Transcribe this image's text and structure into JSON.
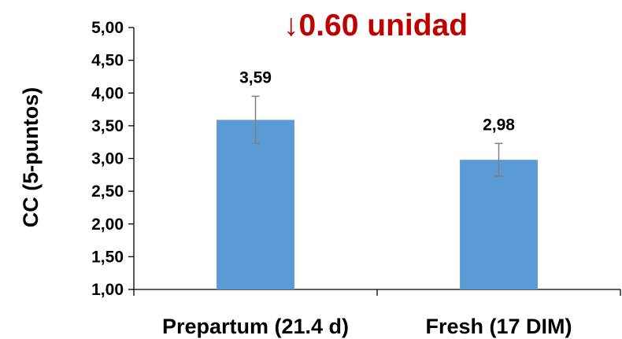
{
  "chart_data": {
    "type": "bar",
    "categories": [
      "Prepartum (21.4 d)",
      "Fresh (17 DIM)"
    ],
    "values": [
      3.59,
      2.98
    ],
    "value_labels": [
      "3,59",
      "2,98"
    ],
    "error_bars": [
      {
        "low": 3.23,
        "high": 3.95
      },
      {
        "low": 2.73,
        "high": 3.23
      }
    ],
    "ylabel": "CC (5-puntos)",
    "ylim": [
      1.0,
      5.0
    ],
    "yticks": [
      1.0,
      1.5,
      2.0,
      2.5,
      3.0,
      3.5,
      4.0,
      4.5,
      5.0
    ],
    "ytick_labels": [
      "1,00",
      "1,50",
      "2,00",
      "2,50",
      "3,00",
      "3,50",
      "4,00",
      "4,50",
      "5,00"
    ],
    "annotation": "↓0.60 unidad",
    "colors": {
      "bar": "#5B9BD5",
      "annotation": "#C00000",
      "error_bar": "#808080",
      "axis": "#000000"
    },
    "grid": false,
    "legend": "none"
  }
}
